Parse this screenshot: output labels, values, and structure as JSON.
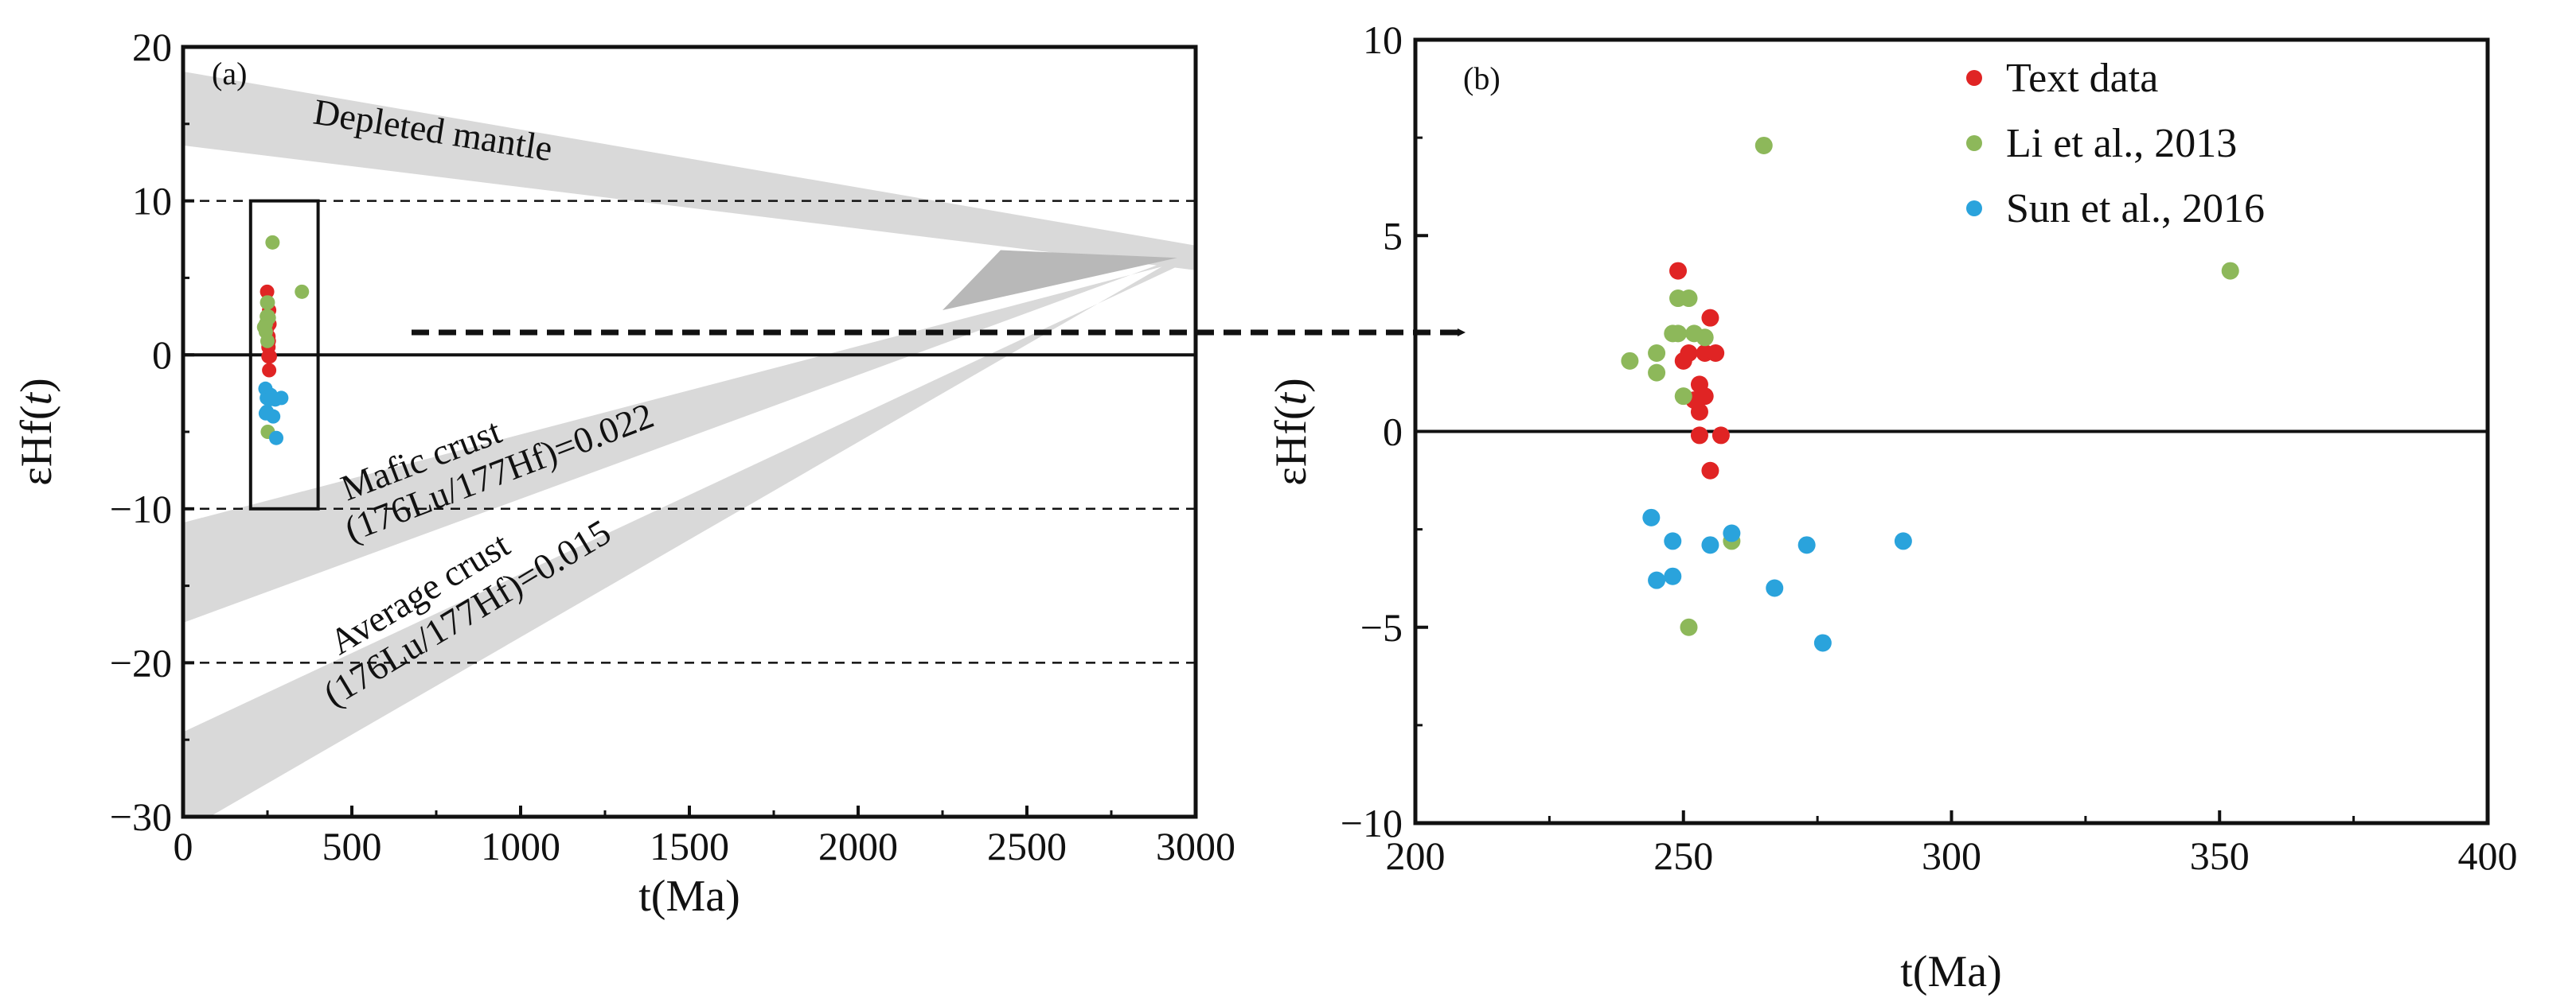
{
  "chart_data": [
    {
      "type": "scatter",
      "panel_label": "(a)",
      "xlabel": "t(Ma)",
      "ylabel_prefix": "εHf(",
      "ylabel_var": "t",
      "ylabel_suffix": ")",
      "xlim": [
        0,
        3000
      ],
      "ylim": [
        -30,
        20
      ],
      "x_ticks": [
        "0",
        "500",
        "1000",
        "1500",
        "2000",
        "2500",
        "3000"
      ],
      "y_ticks": [
        "20",
        "10",
        "0",
        "−10",
        "−20",
        "−30"
      ],
      "reference_lines": [
        {
          "y": 10,
          "style": "dashed"
        },
        {
          "y": -10,
          "style": "dashed"
        },
        {
          "y": -20,
          "style": "dashed"
        },
        {
          "y": 0,
          "style": "solid"
        }
      ],
      "bands": [
        {
          "name": "Depleted mantle",
          "label": "Depleted mantle",
          "polygon": [
            [
              0,
              18.4
            ],
            [
              0,
              13.6
            ],
            [
              3000,
              5.5
            ],
            [
              3000,
              7.1
            ]
          ]
        },
        {
          "name": "Mafic crust",
          "label_line1": "Mafic crust",
          "label_line2": "(176Lu/177Hf)=0.022",
          "polygon": [
            [
              0,
              -10.9
            ],
            [
              0,
              -17.4
            ],
            [
              2945,
              6.3
            ],
            [
              3000,
              6.3
            ]
          ]
        },
        {
          "name": "Average crust",
          "label_line1": "Average crust",
          "label_line2": "(176Lu/177Hf)=0.015",
          "polygon": [
            [
              0,
              -24.5
            ],
            [
              0,
              -31.0
            ],
            [
              2945,
              6.3
            ],
            [
              3000,
              6.3
            ]
          ]
        }
      ],
      "highlight_box": {
        "x": [
          200,
          400
        ],
        "y": [
          -10,
          10
        ]
      },
      "series": [
        {
          "name": "Text data",
          "color": "#e02424",
          "points": [
            [
              249,
              4.1
            ],
            [
              255,
              2.9
            ],
            [
              251,
              2.0
            ],
            [
              254,
              2.0
            ],
            [
              256,
              2.0
            ],
            [
              250,
              1.8
            ],
            [
              253,
              1.2
            ],
            [
              254,
              0.9
            ],
            [
              252,
              0.8
            ],
            [
              253,
              0.5
            ],
            [
              253,
              -0.1
            ],
            [
              257,
              -0.1
            ],
            [
              255,
              -1.0
            ]
          ]
        },
        {
          "name": "Li et al., 2013",
          "color": "#8db85a",
          "points": [
            [
              265,
              7.3
            ],
            [
              352,
              4.1
            ],
            [
              249,
              3.4
            ],
            [
              251,
              3.4
            ],
            [
              248,
              2.5
            ],
            [
              249,
              2.5
            ],
            [
              252,
              2.5
            ],
            [
              254,
              2.4
            ],
            [
              245,
              2.0
            ],
            [
              240,
              1.8
            ],
            [
              245,
              1.5
            ],
            [
              250,
              0.9
            ],
            [
              259,
              -2.8
            ],
            [
              251,
              -5.0
            ]
          ]
        },
        {
          "name": "Sun et al., 2016",
          "color": "#2aa3dc",
          "points": [
            [
              244,
              -2.2
            ],
            [
              259,
              -2.6
            ],
            [
              248,
              -2.8
            ],
            [
              291,
              -2.8
            ],
            [
              255,
              -2.9
            ],
            [
              273,
              -2.9
            ],
            [
              248,
              -3.7
            ],
            [
              245,
              -3.8
            ],
            [
              267,
              -4.0
            ],
            [
              276,
              -5.4
            ]
          ]
        }
      ]
    },
    {
      "type": "scatter",
      "panel_label": "(b)",
      "xlabel": "t(Ma)",
      "ylabel_prefix": "εHf(",
      "ylabel_var": "t",
      "ylabel_suffix": ")",
      "xlim": [
        200,
        400
      ],
      "ylim": [
        -10,
        10
      ],
      "x_ticks": [
        "200",
        "250",
        "300",
        "350",
        "400"
      ],
      "y_ticks": [
        "10",
        "5",
        "0",
        "−5",
        "−10"
      ],
      "reference_lines": [
        {
          "y": 0,
          "style": "solid"
        }
      ],
      "legend": {
        "placement": "top-right",
        "entries": [
          {
            "label": "Text data",
            "color": "#e02424"
          },
          {
            "label": "Li et al., 2013",
            "color": "#8db85a"
          },
          {
            "label": "Sun et al., 2016",
            "color": "#2aa3dc"
          }
        ]
      },
      "series": [
        {
          "name": "Text data",
          "color": "#e02424",
          "points": [
            [
              249,
              4.1
            ],
            [
              255,
              2.9
            ],
            [
              251,
              2.0
            ],
            [
              254,
              2.0
            ],
            [
              256,
              2.0
            ],
            [
              250,
              1.8
            ],
            [
              253,
              1.2
            ],
            [
              254,
              0.9
            ],
            [
              252,
              0.8
            ],
            [
              253,
              0.5
            ],
            [
              253,
              -0.1
            ],
            [
              257,
              -0.1
            ],
            [
              255,
              -1.0
            ]
          ]
        },
        {
          "name": "Li et al., 2013",
          "color": "#8db85a",
          "points": [
            [
              265,
              7.3
            ],
            [
              352,
              4.1
            ],
            [
              249,
              3.4
            ],
            [
              251,
              3.4
            ],
            [
              248,
              2.5
            ],
            [
              249,
              2.5
            ],
            [
              252,
              2.5
            ],
            [
              254,
              2.4
            ],
            [
              245,
              2.0
            ],
            [
              240,
              1.8
            ],
            [
              245,
              1.5
            ],
            [
              250,
              0.9
            ],
            [
              259,
              -2.8
            ],
            [
              251,
              -5.0
            ]
          ]
        },
        {
          "name": "Sun et al., 2016",
          "color": "#2aa3dc",
          "points": [
            [
              244,
              -2.2
            ],
            [
              259,
              -2.6
            ],
            [
              248,
              -2.8
            ],
            [
              291,
              -2.8
            ],
            [
              255,
              -2.9
            ],
            [
              273,
              -2.9
            ],
            [
              248,
              -3.7
            ],
            [
              245,
              -3.8
            ],
            [
              267,
              -4.0
            ],
            [
              276,
              -5.4
            ]
          ]
        }
      ]
    }
  ],
  "colors": {
    "axis": "#111111",
    "band": "#d9d9d9",
    "band_overlap": "#b8b8b8"
  }
}
